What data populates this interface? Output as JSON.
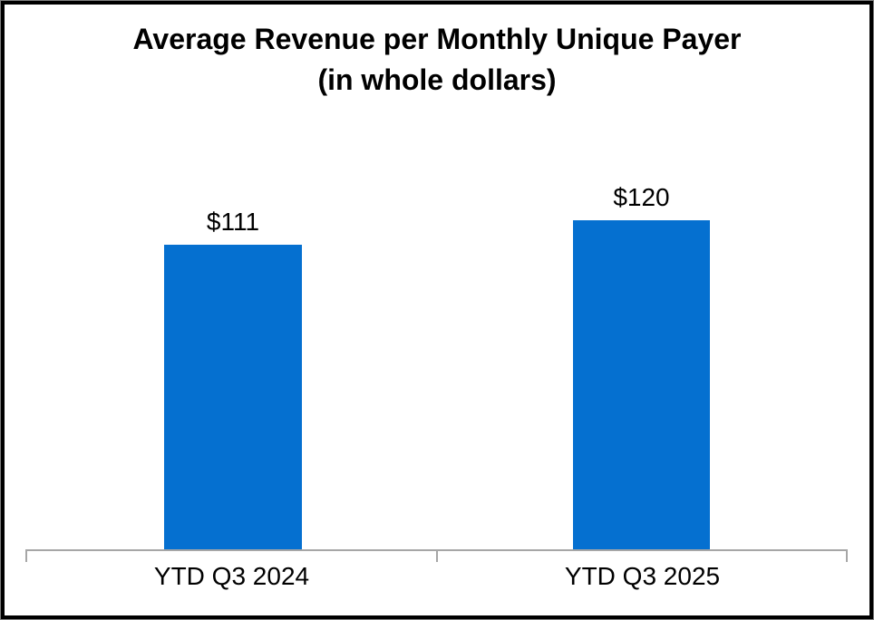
{
  "chart_data": {
    "type": "bar",
    "title": "Average Revenue per Monthly Unique Payer",
    "subtitle": "(in whole dollars)",
    "categories": [
      "YTD Q3 2024",
      "YTD Q3 2025"
    ],
    "values": [
      111,
      120
    ],
    "data_labels": [
      "$111",
      "$120"
    ],
    "series": [
      {
        "name": "Average revenue per monthly unique payer",
        "values": [
          111,
          120
        ]
      }
    ],
    "y_axis": "hidden",
    "ylim": [
      0,
      130
    ],
    "grid": false,
    "legend": "none",
    "bar_color": "#0570D0",
    "axis_line_color": "#A6A6A6",
    "label_color": "#000000",
    "title_color": "#000000",
    "background_color": "#FFFFFF",
    "frame_border_color": "#000000"
  }
}
